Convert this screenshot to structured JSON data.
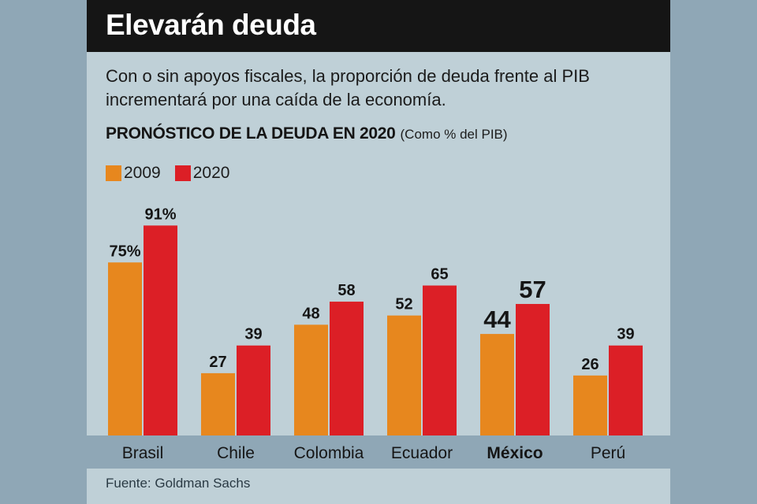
{
  "title": "Elevarán deuda",
  "subtitle": "Con o sin apoyos fiscales, la proporción de deuda frente al PIB incrementará por una caída de la economía.",
  "chart_heading": "PRONÓSTICO DE LA DEUDA EN 2020",
  "chart_unit": "(Como % del PIB)",
  "source": "Fuente: Goldman Sachs",
  "colors": {
    "series_2009": "#e7871e",
    "series_2020": "#dc1f26",
    "background": "#bfd0d7",
    "axis_band": "#8fa7b6"
  },
  "chart_data": {
    "type": "bar",
    "title": "PRONÓSTICO DE LA DEUDA EN 2020",
    "ylabel": "Como % del PIB",
    "xlabel": "",
    "ylim": [
      0,
      100
    ],
    "grid": false,
    "legend_position": "top-left",
    "categories": [
      "Brasil",
      "Chile",
      "Colombia",
      "Ecuador",
      "México",
      "Perú"
    ],
    "highlight_category": "México",
    "series": [
      {
        "name": "2009",
        "values": [
          75,
          27,
          48,
          52,
          44,
          26
        ],
        "labels": [
          "75%",
          "27",
          "48",
          "52",
          "44",
          "26"
        ]
      },
      {
        "name": "2020",
        "values": [
          91,
          39,
          58,
          65,
          57,
          39
        ],
        "labels": [
          "91%",
          "39",
          "58",
          "65",
          "57",
          "39"
        ]
      }
    ]
  }
}
